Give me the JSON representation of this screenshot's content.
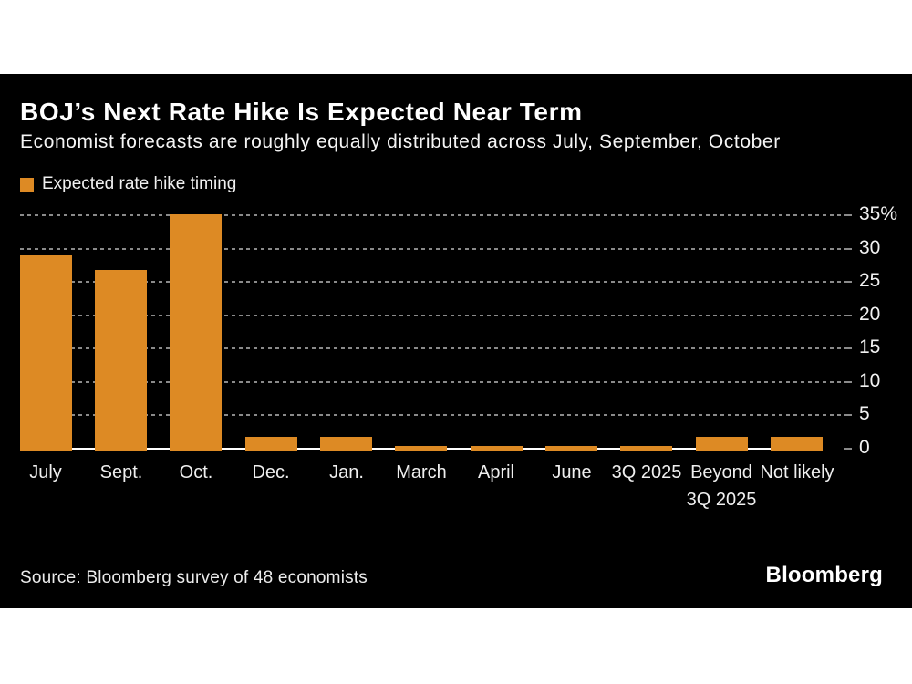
{
  "panel": {
    "title": "BOJ’s Next Rate Hike Is Expected Near Term",
    "subtitle": "Economist forecasts are roughly equally distributed across July, September, October",
    "legend": {
      "label": "Expected rate hike timing",
      "swatch_color": "#DD8A24"
    },
    "source": "Source: Bloomberg survey of 48 economists",
    "brand": "Bloomberg"
  },
  "colors": {
    "background": "#000000",
    "page_background": "#ffffff",
    "bar": "#DD8A24",
    "gridline": "#8a8a8a",
    "baseline": "#ffffff",
    "text": "#ffffff"
  },
  "chart_data": {
    "type": "bar",
    "title": "BOJ’s Next Rate Hike Is Expected Near Term",
    "subtitle": "Economist forecasts are roughly equally distributed across July, September, October",
    "legend_entries": [
      "Expected rate hike timing"
    ],
    "legend_position": "top-left",
    "categories": [
      "July",
      "Sept.",
      "Oct.",
      "Dec.",
      "Jan.",
      "March",
      "April",
      "June",
      "3Q 2025",
      "Beyond 3Q 2025",
      "Not likely"
    ],
    "values": [
      29.2,
      27.1,
      35.4,
      2.1,
      2.1,
      0,
      0,
      0,
      0,
      2.1,
      2.1
    ],
    "unit": "%",
    "xlabel": "",
    "ylabel": "",
    "ylim": [
      0,
      35
    ],
    "y_axis_side": "right",
    "grid": "horizontal-dotted",
    "y_ticks": [
      {
        "value": 35,
        "label": "35%"
      },
      {
        "value": 30,
        "label": "30"
      },
      {
        "value": 25,
        "label": "25"
      },
      {
        "value": 20,
        "label": "20"
      },
      {
        "value": 15,
        "label": "15"
      },
      {
        "value": 10,
        "label": "10"
      },
      {
        "value": 5,
        "label": "5"
      },
      {
        "value": 0,
        "label": "0"
      }
    ]
  }
}
